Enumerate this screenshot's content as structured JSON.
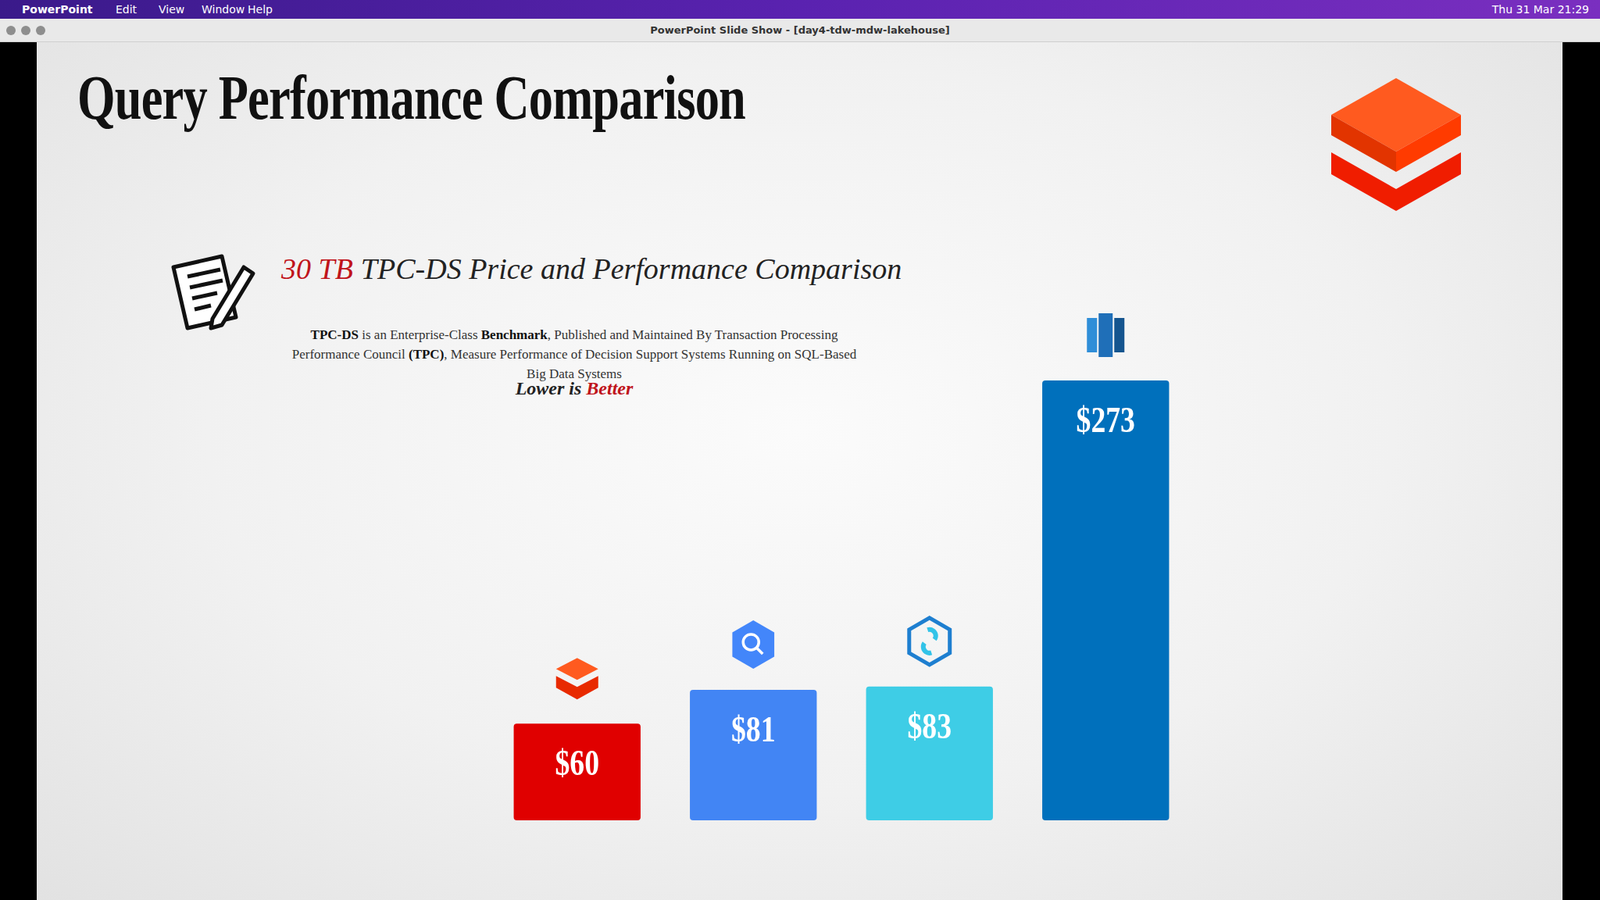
{
  "window": {
    "menu": [
      "PowerPoint",
      "Edit",
      "View",
      "Window",
      "Help"
    ],
    "clock": "Thu 31 Mar 21:29",
    "title": "PowerPoint Slide Show - [day4-tdw-mdw-lakehouse]"
  },
  "slide": {
    "title": "Query Performance Comparison",
    "subtitle": [
      "30 TB",
      "TPC-DS Price and Performance Comparison"
    ],
    "description": [
      "TPC-DS",
      " is an Enterprise-Class ",
      "Benchmark",
      ", Published and Maintained By Transaction Processing Performance Council ",
      "(TPC)",
      ", Measure Performance of Decision Support Systems Running on SQL-Based Big Data Systems"
    ],
    "note": [
      "Lower is",
      "Better"
    ]
  },
  "chart_data": {
    "type": "bar",
    "categories": [
      null,
      null,
      null,
      null
    ],
    "values": [
      60,
      81,
      83,
      273
    ],
    "value_labels": [
      "$60",
      "$81",
      "$83",
      "$273"
    ],
    "colors": [
      "#e00000",
      "#4285f4",
      "#3ecde6",
      "#0070bc"
    ],
    "ylim": [
      0,
      273
    ],
    "grid": false,
    "data_labels": true,
    "tick_labels": false
  }
}
